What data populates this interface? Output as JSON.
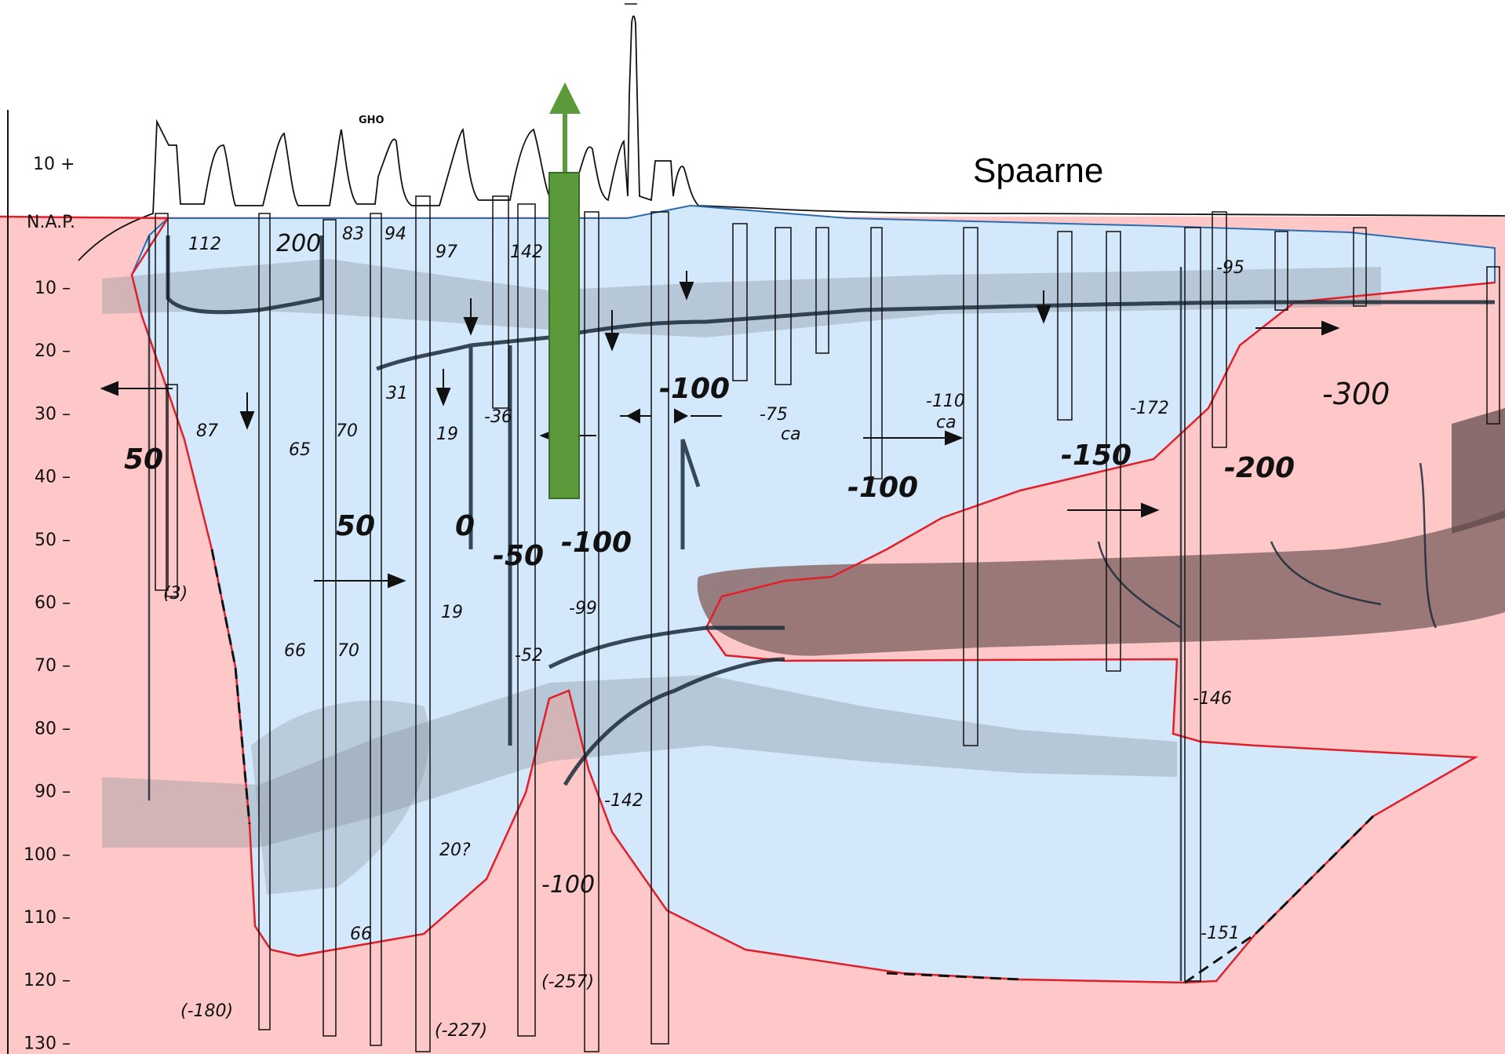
{
  "labels": {
    "river": "Spaarne",
    "datum": "N.A.P.",
    "station": "GHO",
    "axis_top": "10 +"
  },
  "depth_axis": [
    "10",
    "20",
    "30",
    "40",
    "50",
    "60",
    "70",
    "80",
    "90",
    "100",
    "110",
    "120",
    "130"
  ],
  "values": {
    "v112": "112",
    "v200": "200",
    "v83": "83",
    "v94": "94",
    "v97": "97",
    "v142a": "142",
    "v95": "-95",
    "v31": "31",
    "v87": "87",
    "v65": "65",
    "v70a": "70",
    "v19a": "19",
    "v36": "-36",
    "v100a": "-100",
    "v75": "-75",
    "ca1": "ca",
    "v110": "-110",
    "ca2": "ca",
    "v172": "-172",
    "v300": "-300",
    "v50a": "50",
    "v150": "-150",
    "v200b": "-200",
    "v100b": "-100",
    "v50b": "50",
    "v0": "0",
    "v50c": "-50",
    "v100c": "-100",
    "v3": "(3)",
    "v19b": "19",
    "v99": "-99",
    "v66a": "66",
    "v70b": "70",
    "v52": "-52",
    "v146": "-146",
    "v142b": "-142",
    "v20q": "20?",
    "v100d": "-100",
    "v66b": "66",
    "v151": "-151",
    "v180": "(-180)",
    "v257": "(-257)",
    "v227": "(-227)"
  },
  "colors": {
    "saline": "#ffc8c8",
    "fresh": "#d4e8fb",
    "arrow_green": "#5a9a3a",
    "outline_red": "#e0202a",
    "outline_blue": "#2b6cb0",
    "clay": "#7a5a5a"
  }
}
